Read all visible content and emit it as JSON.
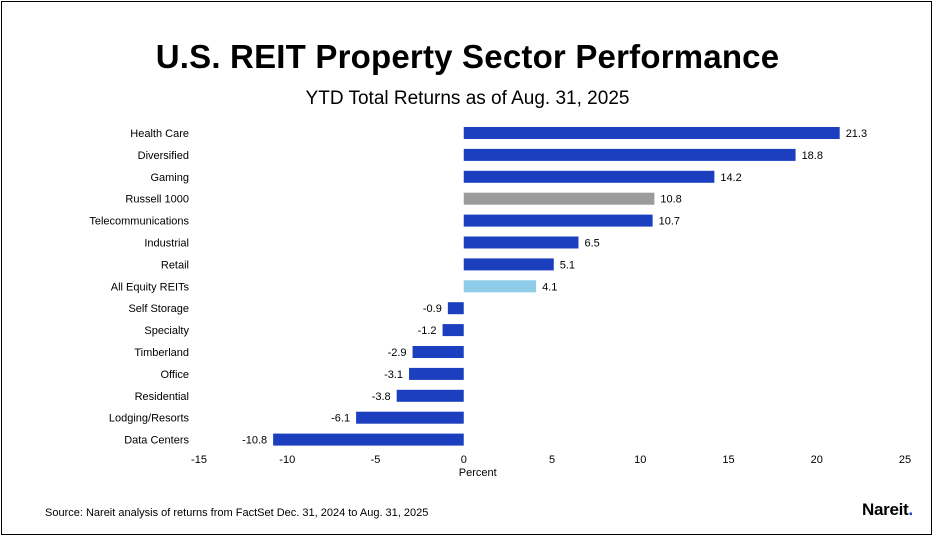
{
  "chart_data": {
    "type": "bar",
    "orientation": "horizontal",
    "title": "U.S. REIT Property Sector Performance",
    "subtitle": "YTD Total Returns as of Aug. 31, 2025",
    "xlabel": "Percent",
    "xlim": [
      -15,
      25
    ],
    "xticks": [
      -15,
      -10,
      -5,
      0,
      5,
      10,
      15,
      20,
      25
    ],
    "categories": [
      "Health Care",
      "Diversified",
      "Gaming",
      "Russell 1000",
      "Telecommunications",
      "Industrial",
      "Retail",
      "All Equity REITs",
      "Self Storage",
      "Specialty",
      "Timberland",
      "Office",
      "Residential",
      "Lodging/Resorts",
      "Data Centers"
    ],
    "values": [
      21.3,
      18.8,
      14.2,
      10.8,
      10.7,
      6.5,
      5.1,
      4.1,
      -0.9,
      -1.2,
      -2.9,
      -3.1,
      -3.8,
      -6.1,
      -10.8
    ],
    "value_labels": [
      "21.3",
      "18.8",
      "14.2",
      "10.8",
      "10.7",
      "6.5",
      "5.1",
      "4.1",
      "-0.9",
      "-1.2",
      "-2.9",
      "-3.1",
      "-3.8",
      "-6.1",
      "-10.8"
    ],
    "colors": {
      "default": "#1b3fbf",
      "Russell 1000": "#9b9b9b",
      "All Equity REITs": "#8ecbe8"
    },
    "grid": false,
    "legend": "none"
  },
  "footer": {
    "source": "Source: Nareit analysis of returns from FactSet Dec. 31, 2024 to Aug. 31, 2025",
    "logo_text": "Nareit"
  }
}
